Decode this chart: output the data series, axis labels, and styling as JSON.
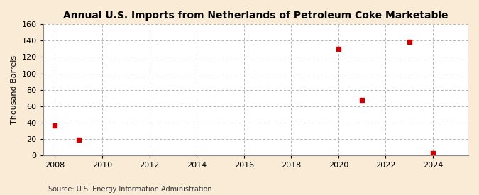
{
  "title": "Annual U.S. Imports from Netherlands of Petroleum Coke Marketable",
  "ylabel": "Thousand Barrels",
  "source": "Source: U.S. Energy Information Administration",
  "background_color": "#faebd7",
  "plot_background_color": "#ffffff",
  "marker_color": "#cc0000",
  "marker": "s",
  "marker_size": 4,
  "xlim": [
    2007.5,
    2025.5
  ],
  "ylim": [
    0,
    160
  ],
  "yticks": [
    0,
    20,
    40,
    60,
    80,
    100,
    120,
    140,
    160
  ],
  "xticks": [
    2008,
    2010,
    2012,
    2014,
    2016,
    2018,
    2020,
    2022,
    2024
  ],
  "years": [
    2008,
    2009,
    2020,
    2021,
    2023,
    2024
  ],
  "values": [
    36,
    19,
    130,
    68,
    139,
    3
  ],
  "grid_color": "#aaaaaa",
  "grid_linestyle": "--",
  "title_fontsize": 10,
  "label_fontsize": 8,
  "tick_fontsize": 8,
  "source_fontsize": 7
}
